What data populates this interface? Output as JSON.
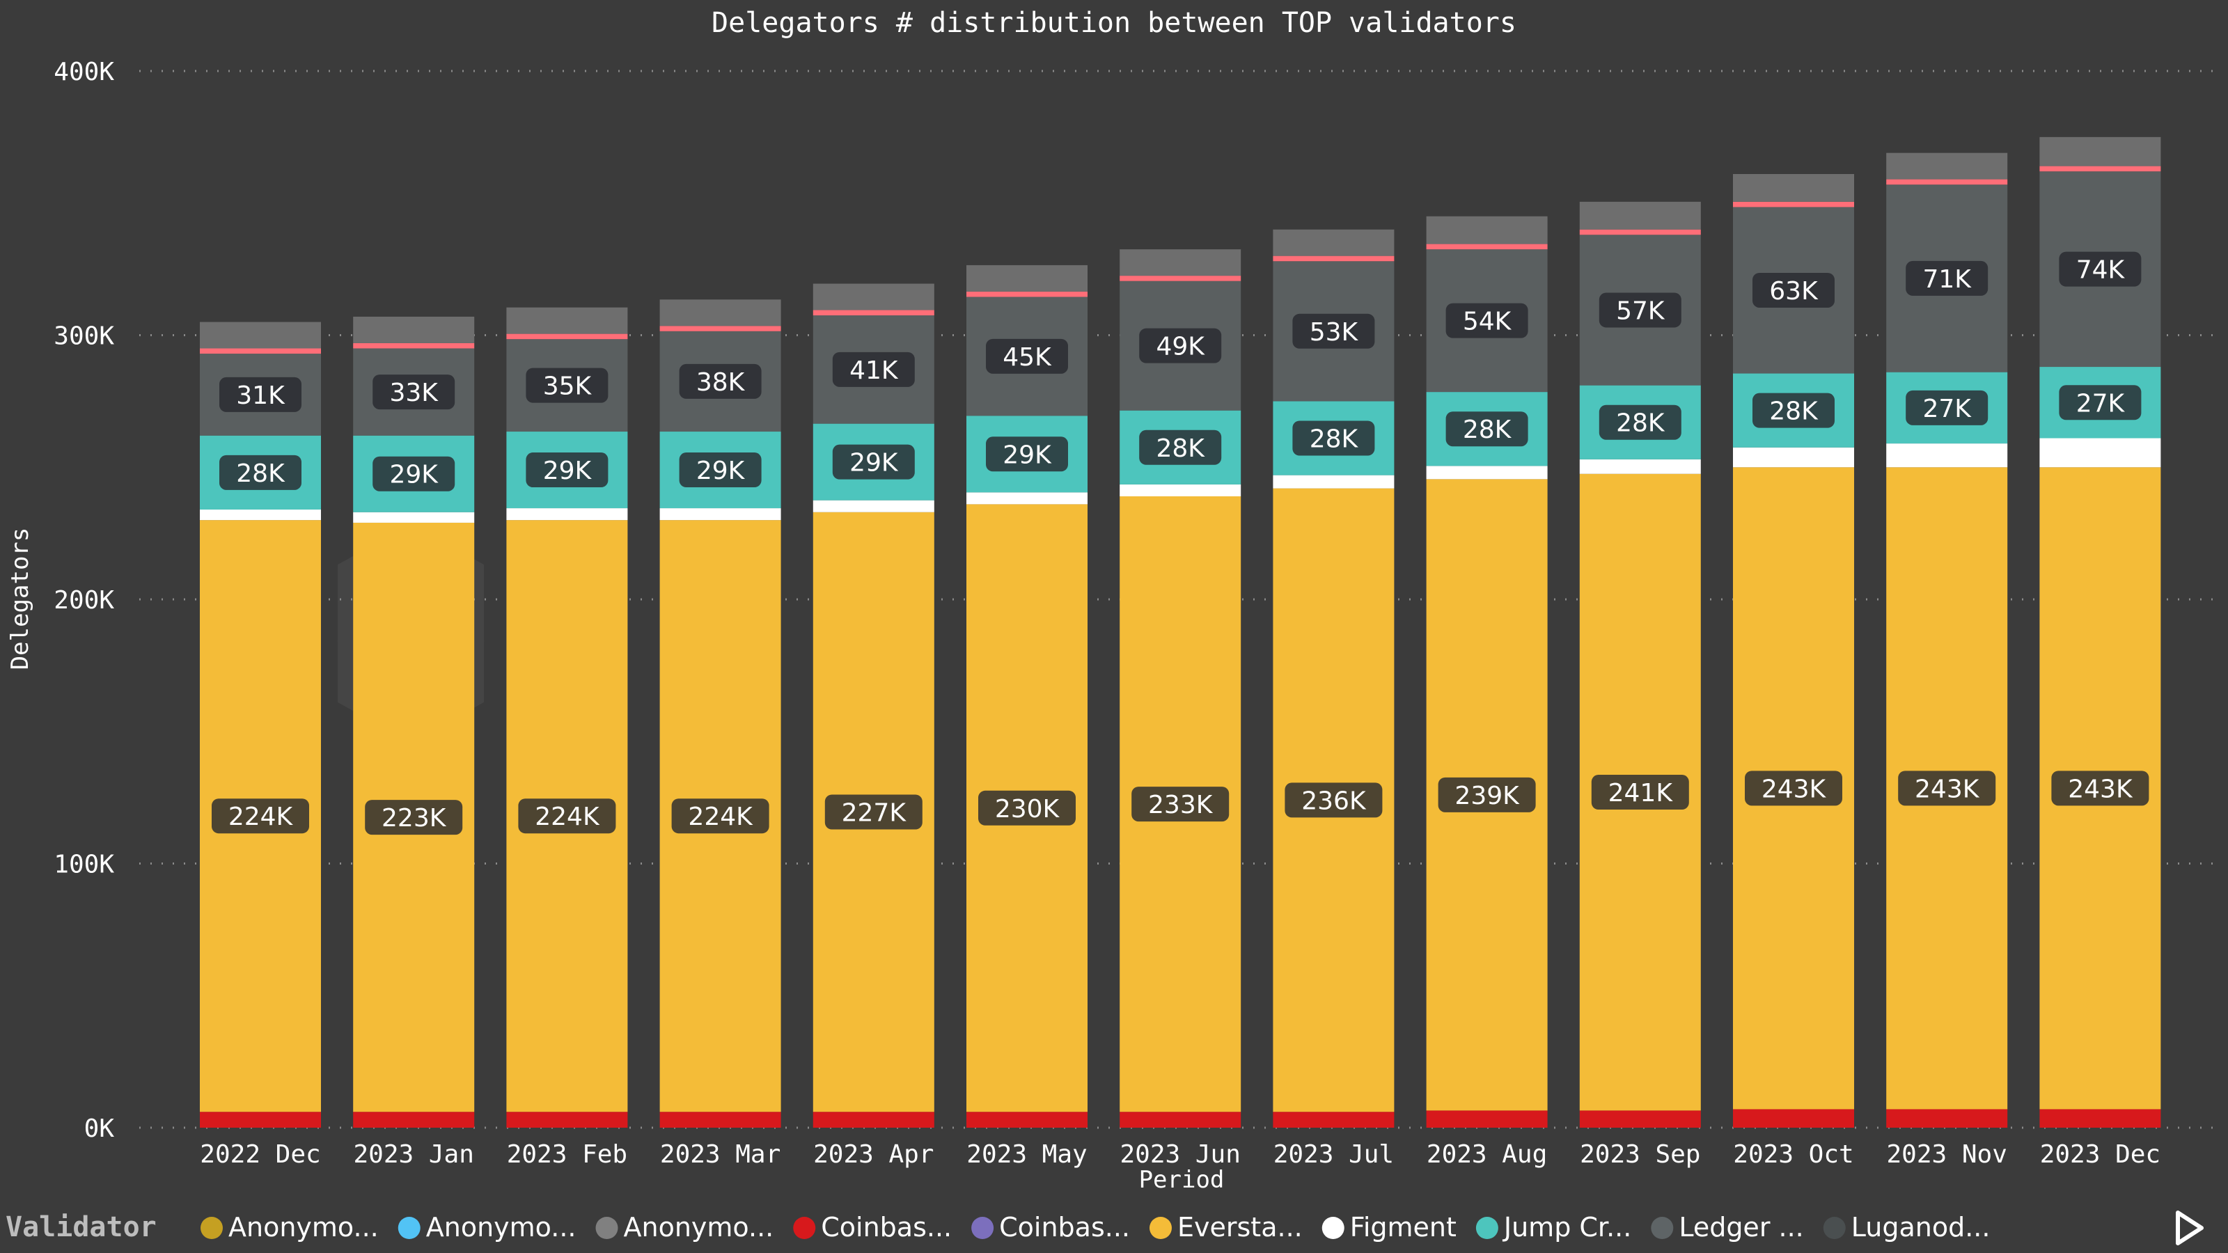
{
  "chart_data": {
    "type": "bar",
    "stacked": true,
    "title": "Delegators # distribution between TOP validators",
    "xlabel": "Period",
    "ylabel": "Delegators",
    "ylim": [
      0,
      400000
    ],
    "yticks": [
      "0K",
      "100K",
      "200K",
      "300K",
      "400K"
    ],
    "grid": true,
    "categories": [
      "2022 Dec",
      "2023 Jan",
      "2023 Feb",
      "2023 Mar",
      "2023 Apr",
      "2023 May",
      "2023 Jun",
      "2023 Jul",
      "2023 Aug",
      "2023 Sep",
      "2023 Oct",
      "2023 Nov",
      "2023 Dec"
    ],
    "series": [
      {
        "name": "Coinbas...",
        "color": "#d7191c",
        "values": [
          6000,
          6000,
          6000,
          6000,
          6000,
          6000,
          6000,
          6000,
          6500,
          6500,
          7000,
          7000,
          7000
        ]
      },
      {
        "name": "Eversta...",
        "color": "#f4bc38",
        "values": [
          224000,
          223000,
          224000,
          224000,
          227000,
          230000,
          233000,
          236000,
          239000,
          241000,
          243000,
          243000,
          243000
        ],
        "labels": [
          "224K",
          "223K",
          "224K",
          "224K",
          "227K",
          "230K",
          "233K",
          "236K",
          "239K",
          "241K",
          "243K",
          "243K",
          "243K"
        ]
      },
      {
        "name": "Figment",
        "color": "#ffffff",
        "values": [
          4000,
          4000,
          4500,
          4500,
          4500,
          4500,
          4500,
          5000,
          5000,
          5500,
          7500,
          9000,
          11000
        ]
      },
      {
        "name": "Jump Cr...",
        "color": "#4dc5bd",
        "values": [
          28000,
          29000,
          29000,
          29000,
          29000,
          29000,
          28000,
          28000,
          28000,
          28000,
          28000,
          27000,
          27000
        ],
        "labels": [
          "28K",
          "29K",
          "29K",
          "29K",
          "29K",
          "29K",
          "28K",
          "28K",
          "28K",
          "28K",
          "28K",
          "27K",
          "27K"
        ]
      },
      {
        "name": "Ledger ...",
        "color": "#5a5f60",
        "values": [
          31000,
          33000,
          35000,
          38000,
          41000,
          45000,
          49000,
          53000,
          54000,
          57000,
          63000,
          71000,
          74000
        ],
        "labels": [
          "31K",
          "33K",
          "35K",
          "38K",
          "41K",
          "45K",
          "49K",
          "53K",
          "54K",
          "57K",
          "63K",
          "71K",
          "74K"
        ]
      },
      {
        "name": "Anonymo...",
        "color": "#ff6e78",
        "values": [
          2000,
          2000,
          2000,
          2000,
          2000,
          2000,
          2000,
          2000,
          2000,
          2000,
          2000,
          2000,
          2000
        ]
      },
      {
        "name": "Anonymo...",
        "color": "#6e6e6e",
        "values": [
          10000,
          10000,
          10000,
          10000,
          10000,
          10000,
          10000,
          10000,
          10500,
          10500,
          10500,
          10000,
          11000
        ]
      }
    ],
    "legend": {
      "title": "Validator",
      "placement": "bottom",
      "items": [
        {
          "name": "Anonymo...",
          "color": "#c5a022"
        },
        {
          "name": "Anonymo...",
          "color": "#52c3f5"
        },
        {
          "name": "Anonymo...",
          "color": "#808080"
        },
        {
          "name": "Coinbas...",
          "color": "#d7191c"
        },
        {
          "name": "Coinbas...",
          "color": "#7c6fbd"
        },
        {
          "name": "Eversta...",
          "color": "#f4bc38"
        },
        {
          "name": "Figment",
          "color": "#ffffff"
        },
        {
          "name": "Jump Cr...",
          "color": "#4dc5bd"
        },
        {
          "name": "Ledger ...",
          "color": "#5e6466"
        },
        {
          "name": "Luganod...",
          "color": "#4a4f50"
        }
      ]
    }
  }
}
